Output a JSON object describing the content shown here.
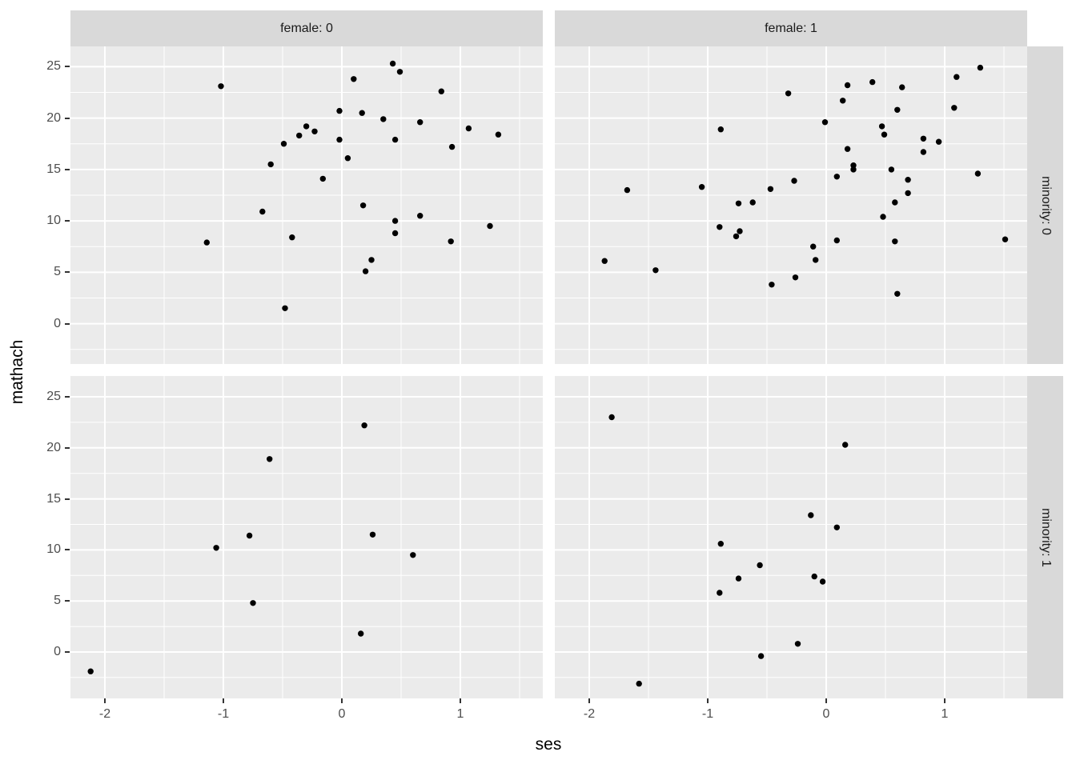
{
  "chart_data": {
    "type": "scatter",
    "title": "",
    "xlabel": "ses",
    "ylabel": "mathach",
    "x_ticks": [
      -2,
      -1,
      0,
      1
    ],
    "y_ticks": [
      0,
      5,
      10,
      15,
      20,
      25
    ],
    "x_minor_ticks": [
      -1.5,
      -0.5,
      0.5,
      1.5
    ],
    "y_minor_ticks": [
      -2.5,
      2.5,
      7.5,
      12.5,
      17.5,
      22.5
    ],
    "xlim": [
      -2.3,
      1.69
    ],
    "ylim": [
      -4.6,
      26.9
    ],
    "grid": "white major and minor gridlines on grey panel",
    "legend_position": "none",
    "facets": {
      "col_var": "female",
      "row_var": "minority",
      "col_labels": [
        "female: 0",
        "female: 1"
      ],
      "row_labels": [
        "minority: 0",
        "minority: 1"
      ]
    },
    "point_color": "#000000",
    "point_radius_px": 3.7,
    "panels": [
      {
        "facet_col": "female: 0",
        "facet_row": "minority: 0",
        "points": [
          [
            0.43,
            25.3
          ],
          [
            0.49,
            24.5
          ],
          [
            0.1,
            23.8
          ],
          [
            -1.02,
            23.1
          ],
          [
            0.84,
            22.6
          ],
          [
            -0.02,
            20.7
          ],
          [
            0.17,
            20.5
          ],
          [
            0.35,
            19.9
          ],
          [
            0.66,
            19.6
          ],
          [
            -0.3,
            19.2
          ],
          [
            1.07,
            19.0
          ],
          [
            -0.23,
            18.7
          ],
          [
            -0.36,
            18.3
          ],
          [
            1.32,
            18.4
          ],
          [
            -0.02,
            17.9
          ],
          [
            0.45,
            17.9
          ],
          [
            -0.49,
            17.5
          ],
          [
            0.93,
            17.2
          ],
          [
            0.05,
            16.1
          ],
          [
            -0.6,
            15.5
          ],
          [
            -0.16,
            14.1
          ],
          [
            0.18,
            11.5
          ],
          [
            -0.67,
            10.9
          ],
          [
            0.66,
            10.5
          ],
          [
            0.45,
            10.0
          ],
          [
            1.25,
            9.5
          ],
          [
            0.45,
            8.8
          ],
          [
            -0.42,
            8.4
          ],
          [
            -1.14,
            7.9
          ],
          [
            0.92,
            8.0
          ],
          [
            0.25,
            6.2
          ],
          [
            0.2,
            5.1
          ],
          [
            -0.48,
            1.5
          ]
        ]
      },
      {
        "facet_col": "female: 1",
        "facet_row": "minority: 0",
        "points": [
          [
            1.3,
            24.9
          ],
          [
            1.1,
            24.0
          ],
          [
            0.39,
            23.5
          ],
          [
            0.18,
            23.2
          ],
          [
            0.64,
            23.0
          ],
          [
            -0.32,
            22.4
          ],
          [
            0.14,
            21.7
          ],
          [
            1.08,
            21.0
          ],
          [
            0.6,
            20.8
          ],
          [
            -0.01,
            19.6
          ],
          [
            0.47,
            19.2
          ],
          [
            -0.89,
            18.9
          ],
          [
            0.49,
            18.4
          ],
          [
            0.82,
            18.0
          ],
          [
            0.95,
            17.7
          ],
          [
            0.18,
            17.0
          ],
          [
            0.82,
            16.7
          ],
          [
            0.23,
            15.4
          ],
          [
            0.23,
            15.0
          ],
          [
            0.55,
            15.0
          ],
          [
            1.28,
            14.6
          ],
          [
            0.09,
            14.3
          ],
          [
            0.69,
            14.0
          ],
          [
            -0.27,
            13.9
          ],
          [
            -1.05,
            13.3
          ],
          [
            -1.68,
            13.0
          ],
          [
            -0.47,
            13.1
          ],
          [
            0.69,
            12.7
          ],
          [
            0.58,
            11.8
          ],
          [
            -0.62,
            11.8
          ],
          [
            -0.74,
            11.7
          ],
          [
            0.48,
            10.4
          ],
          [
            -0.9,
            9.4
          ],
          [
            -0.73,
            9.0
          ],
          [
            -0.76,
            8.5
          ],
          [
            1.51,
            8.2
          ],
          [
            0.09,
            8.1
          ],
          [
            0.58,
            8.0
          ],
          [
            -0.11,
            7.5
          ],
          [
            -0.09,
            6.2
          ],
          [
            -1.87,
            6.1
          ],
          [
            -1.44,
            5.2
          ],
          [
            -0.26,
            4.5
          ],
          [
            -0.46,
            3.8
          ],
          [
            0.6,
            2.9
          ]
        ]
      },
      {
        "facet_col": "female: 0",
        "facet_row": "minority: 1",
        "points": [
          [
            0.19,
            22.2
          ],
          [
            -0.61,
            18.9
          ],
          [
            0.26,
            11.5
          ],
          [
            -0.78,
            11.4
          ],
          [
            -1.06,
            10.2
          ],
          [
            0.6,
            9.5
          ],
          [
            -0.75,
            4.8
          ],
          [
            0.16,
            1.8
          ],
          [
            -2.12,
            -1.9
          ]
        ]
      },
      {
        "facet_col": "female: 1",
        "facet_row": "minority: 1",
        "points": [
          [
            -1.81,
            23.0
          ],
          [
            0.16,
            20.3
          ],
          [
            -0.13,
            13.4
          ],
          [
            0.09,
            12.2
          ],
          [
            -0.89,
            10.6
          ],
          [
            -0.56,
            8.5
          ],
          [
            -0.1,
            7.4
          ],
          [
            -0.74,
            7.2
          ],
          [
            -0.03,
            6.9
          ],
          [
            -0.9,
            5.8
          ],
          [
            -0.24,
            0.8
          ],
          [
            -0.55,
            -0.4
          ],
          [
            -1.58,
            -3.1
          ]
        ]
      }
    ]
  },
  "colors": {
    "panel_background": "#ebebeb",
    "strip_background": "#d9d9d9",
    "gridline": "#ffffff",
    "tick_label": "#4d4d4d",
    "tick_mark": "#333333",
    "point": "#000000",
    "page_background": "#ffffff"
  }
}
